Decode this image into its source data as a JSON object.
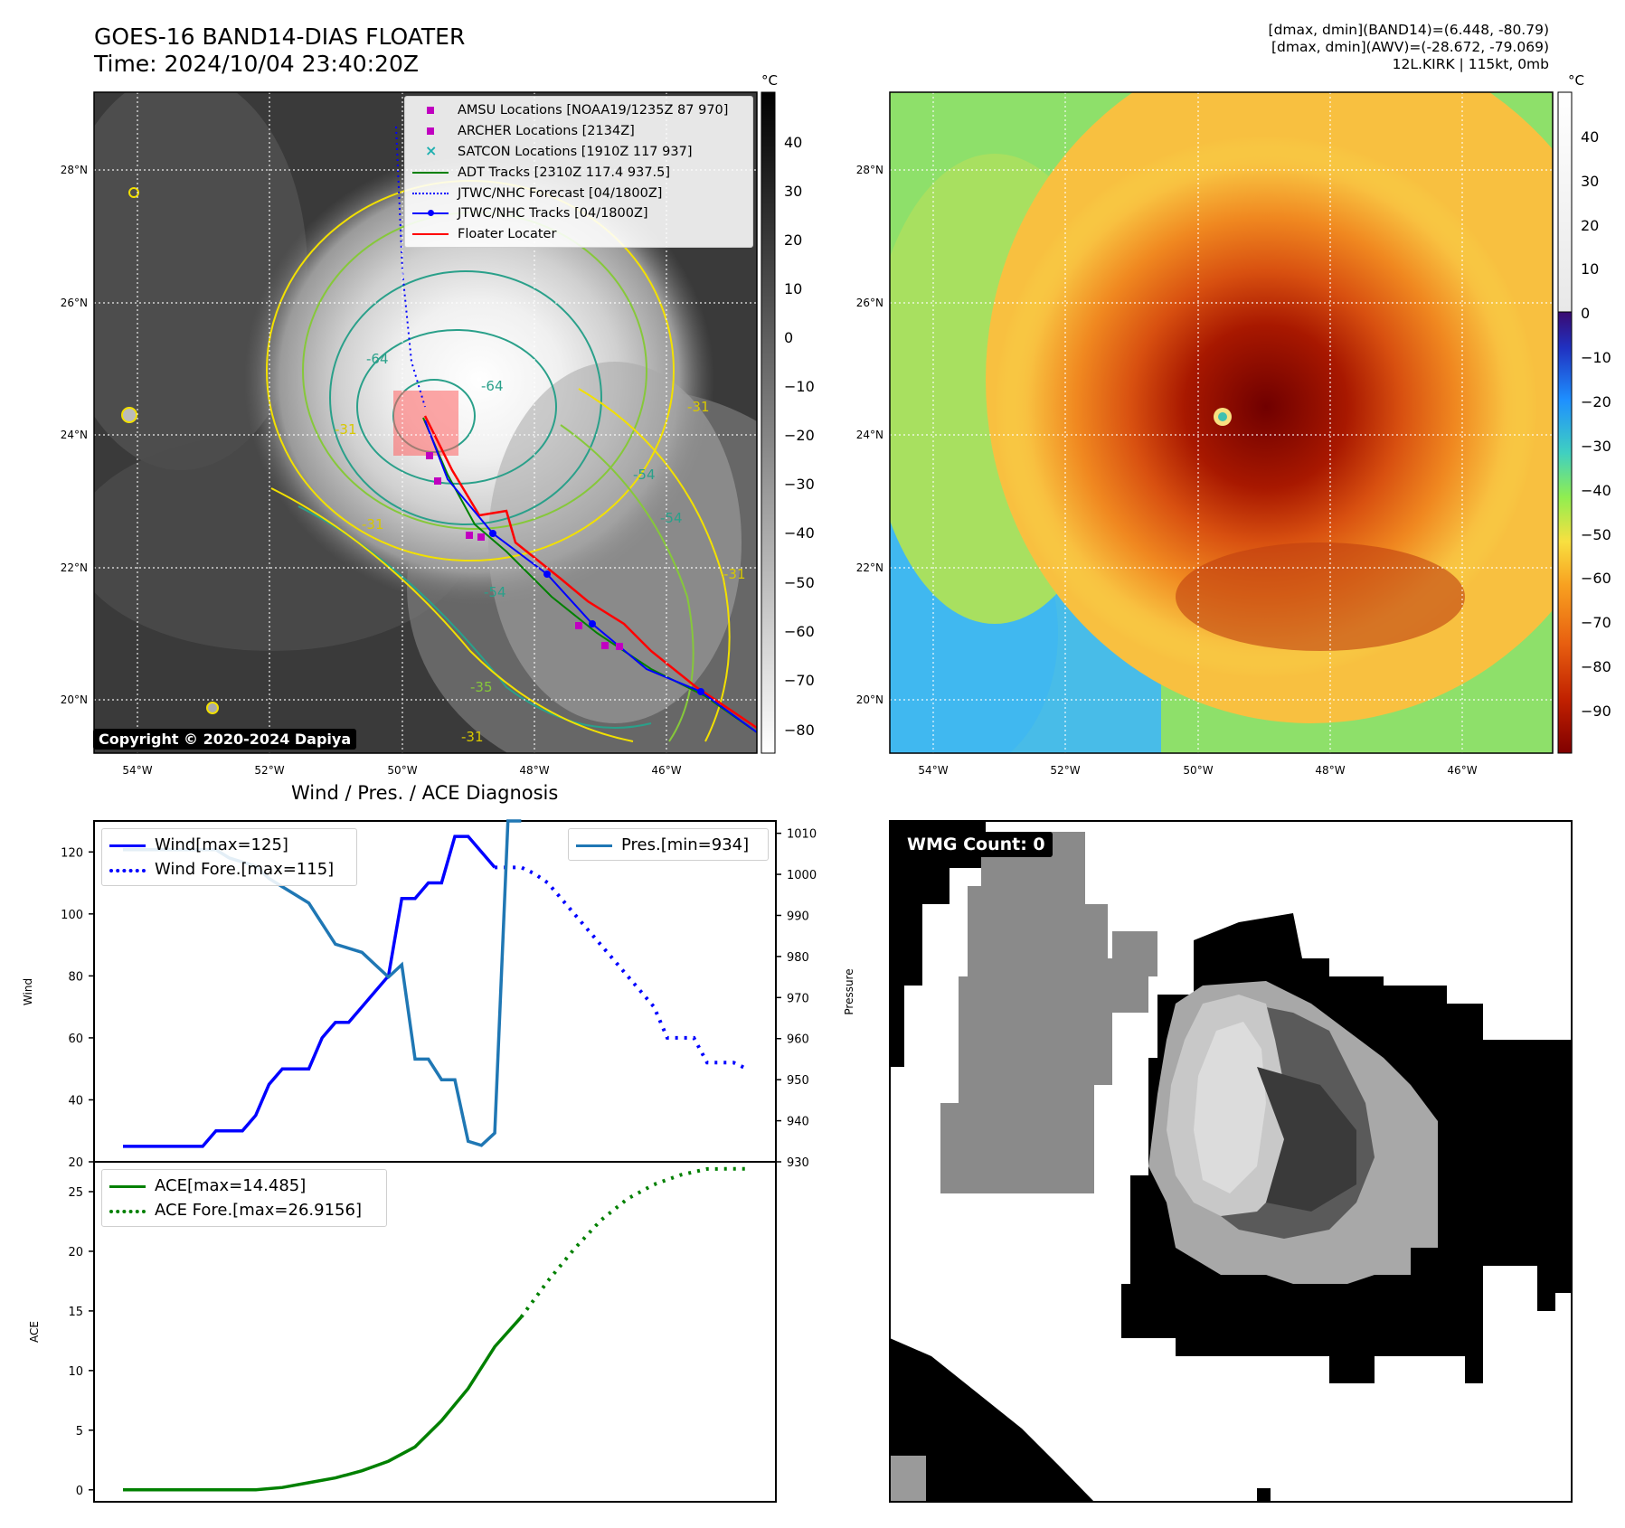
{
  "header": {
    "title_line1": "GOES-16 BAND14-DIAS FLOATER",
    "title_line2": "Time: 2024/10/04 23:40:20Z",
    "right_line1": "[dmax, dmin](BAND14)=(6.448, -80.79)",
    "right_line2": "[dmax, dmin](AWV)=(-28.672, -79.069)",
    "right_line3": "12L.KIRK | 115kt, 0mb"
  },
  "maps": {
    "lat_ticks": [
      "28°N",
      "26°N",
      "24°N",
      "22°N",
      "20°N"
    ],
    "lon_ticks": [
      "54°W",
      "52°W",
      "50°W",
      "48°W",
      "46°W"
    ],
    "unit": "°C",
    "left_colorbar_ticks": [
      "40",
      "30",
      "20",
      "10",
      "0",
      "−10",
      "−20",
      "−30",
      "−40",
      "−50",
      "−60",
      "−70",
      "−80"
    ],
    "right_colorbar_ticks": [
      "40",
      "30",
      "20",
      "10",
      "0",
      "−10",
      "−20",
      "−30",
      "−40",
      "−50",
      "−60",
      "−70",
      "−80",
      "−90"
    ],
    "contour_labels": [
      "-64",
      "-64",
      "-54",
      "-54",
      "-31",
      "-31",
      "-31",
      "-31",
      "-54",
      "-31",
      "-35"
    ],
    "legend": [
      {
        "label": "AMSU Locations [NOAA19/1235Z 87 970]",
        "kind": "square",
        "color": "#c000c0"
      },
      {
        "label": "ARCHER Locations [2134Z]",
        "kind": "square",
        "color": "#c000c0"
      },
      {
        "label": "SATCON Locations [1910Z 117 937]",
        "kind": "x",
        "color": "#20b0b0"
      },
      {
        "label": "ADT Tracks [2310Z 117.4 937.5]",
        "kind": "line",
        "color": "#008000"
      },
      {
        "label": "JTWC/NHC Forecast [04/1800Z]",
        "kind": "dotted",
        "color": "#0000ff"
      },
      {
        "label": "JTWC/NHC Tracks [04/1800Z]",
        "kind": "line-dot",
        "color": "#0000ff"
      },
      {
        "label": "Floater Locater",
        "kind": "line",
        "color": "#ff0000"
      }
    ],
    "copyright": "Copyright © 2020-2024 Dapiya"
  },
  "diagnosis": {
    "title": "Wind / Pres. / ACE Diagnosis",
    "wind_ylabel": "Wind",
    "pres_ylabel": "Pressure",
    "ace_ylabel": "ACE",
    "legend_wind": "Wind[max=125]",
    "legend_wind_fore": "Wind Fore.[max=115]",
    "legend_pres": "Pres.[min=934]",
    "legend_ace": "ACE[max=14.485]",
    "legend_ace_fore": "ACE Fore.[max=26.9156]",
    "wmg_badge": "WMG Count: 0"
  },
  "chart_data": [
    {
      "type": "line",
      "name": "Wind / Pressure",
      "x_index_range": [
        0,
        47
      ],
      "wind_ylim": [
        20,
        130
      ],
      "wind_ticks": [
        20,
        40,
        60,
        80,
        100,
        120
      ],
      "pres_ylim": [
        930,
        1013
      ],
      "pres_ticks": [
        930,
        940,
        950,
        960,
        970,
        980,
        990,
        1000,
        1010
      ],
      "series": [
        {
          "name": "Wind[max=125]",
          "color": "#0000ff",
          "style": "solid",
          "x": [
            0,
            1,
            2,
            3,
            4,
            5,
            6,
            7,
            8,
            9,
            10,
            11,
            12,
            13,
            14,
            15,
            16,
            17,
            18,
            19,
            20,
            21,
            22,
            23,
            24,
            25,
            26,
            27,
            28
          ],
          "values": [
            25,
            25,
            25,
            25,
            25,
            25,
            25,
            30,
            30,
            30,
            35,
            45,
            50,
            50,
            50,
            60,
            65,
            65,
            70,
            75,
            80,
            105,
            105,
            110,
            110,
            125,
            125,
            120,
            115
          ]
        },
        {
          "name": "Wind Fore.[max=115]",
          "color": "#0000ff",
          "style": "dotted",
          "x": [
            28,
            29,
            30,
            31,
            32,
            33,
            34,
            35,
            36,
            37,
            38,
            39,
            40,
            41,
            42,
            43,
            44,
            45,
            46,
            47
          ],
          "values": [
            115,
            115,
            115,
            113,
            110,
            105,
            100,
            95,
            90,
            85,
            80,
            75,
            70,
            60,
            60,
            60,
            52,
            52,
            52,
            50
          ]
        },
        {
          "name": "Pres.[min=934]",
          "color": "#1f77b4",
          "style": "solid",
          "axis": "pressure",
          "x": [
            0,
            1,
            2,
            3,
            4,
            5,
            6,
            7,
            8,
            9,
            10,
            11,
            12,
            13,
            14,
            15,
            16,
            17,
            18,
            19,
            20,
            21,
            22,
            23,
            24,
            25,
            26,
            27,
            28,
            29,
            30
          ],
          "values": [
            1006,
            1006,
            1006,
            1006,
            1006,
            1006,
            1006,
            1006,
            1004,
            1003,
            1002,
            999,
            997,
            995,
            993,
            988,
            983,
            982,
            981,
            978,
            975,
            978,
            955,
            955,
            950,
            950,
            935,
            934,
            937,
            1013,
            1013
          ]
        }
      ]
    },
    {
      "type": "line",
      "name": "ACE",
      "x_index_range": [
        0,
        47
      ],
      "ylim": [
        -1,
        27.5
      ],
      "ticks": [
        0,
        5,
        10,
        15,
        20,
        25
      ],
      "series": [
        {
          "name": "ACE[max=14.485]",
          "color": "#008000",
          "style": "solid",
          "x": [
            0,
            2,
            4,
            6,
            8,
            10,
            12,
            14,
            16,
            18,
            20,
            22,
            24,
            26,
            28,
            30
          ],
          "values": [
            0,
            0,
            0,
            0,
            0,
            0,
            0.2,
            0.6,
            1.0,
            1.6,
            2.4,
            3.6,
            5.8,
            8.5,
            12,
            14.485
          ]
        },
        {
          "name": "ACE Fore.[max=26.9156]",
          "color": "#008000",
          "style": "dotted",
          "x": [
            30,
            32,
            34,
            36,
            38,
            40,
            42,
            44,
            46,
            47
          ],
          "values": [
            14.485,
            17.5,
            20.2,
            22.6,
            24.4,
            25.6,
            26.4,
            26.9,
            26.9156,
            26.9156
          ]
        }
      ]
    }
  ]
}
